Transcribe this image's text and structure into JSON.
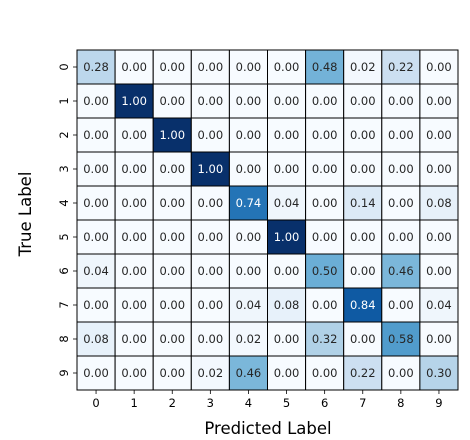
{
  "chart_data": {
    "type": "heatmap",
    "title": "",
    "xlabel": "Predicted Label",
    "ylabel": "True Label",
    "x_categories": [
      "0",
      "1",
      "2",
      "3",
      "4",
      "5",
      "6",
      "7",
      "8",
      "9"
    ],
    "y_categories": [
      "0",
      "1",
      "2",
      "3",
      "4",
      "5",
      "6",
      "7",
      "8",
      "9"
    ],
    "value_range": [
      0,
      1
    ],
    "colormap": "Blues",
    "values": [
      [
        0.28,
        0.0,
        0.0,
        0.0,
        0.0,
        0.0,
        0.48,
        0.02,
        0.22,
        0.0
      ],
      [
        0.0,
        1.0,
        0.0,
        0.0,
        0.0,
        0.0,
        0.0,
        0.0,
        0.0,
        0.0
      ],
      [
        0.0,
        0.0,
        1.0,
        0.0,
        0.0,
        0.0,
        0.0,
        0.0,
        0.0,
        0.0
      ],
      [
        0.0,
        0.0,
        0.0,
        1.0,
        0.0,
        0.0,
        0.0,
        0.0,
        0.0,
        0.0
      ],
      [
        0.0,
        0.0,
        0.0,
        0.0,
        0.74,
        0.04,
        0.0,
        0.14,
        0.0,
        0.08
      ],
      [
        0.0,
        0.0,
        0.0,
        0.0,
        0.0,
        1.0,
        0.0,
        0.0,
        0.0,
        0.0
      ],
      [
        0.04,
        0.0,
        0.0,
        0.0,
        0.0,
        0.0,
        0.5,
        0.0,
        0.46,
        0.0
      ],
      [
        0.0,
        0.0,
        0.0,
        0.0,
        0.04,
        0.08,
        0.0,
        0.84,
        0.0,
        0.04
      ],
      [
        0.08,
        0.0,
        0.0,
        0.0,
        0.02,
        0.0,
        0.32,
        0.0,
        0.58,
        0.0
      ],
      [
        0.0,
        0.0,
        0.0,
        0.02,
        0.46,
        0.0,
        0.0,
        0.22,
        0.0,
        0.3
      ]
    ],
    "value_format": "2 decimals",
    "cell_border_color": "#000000",
    "colorbar": false,
    "grid": false
  }
}
